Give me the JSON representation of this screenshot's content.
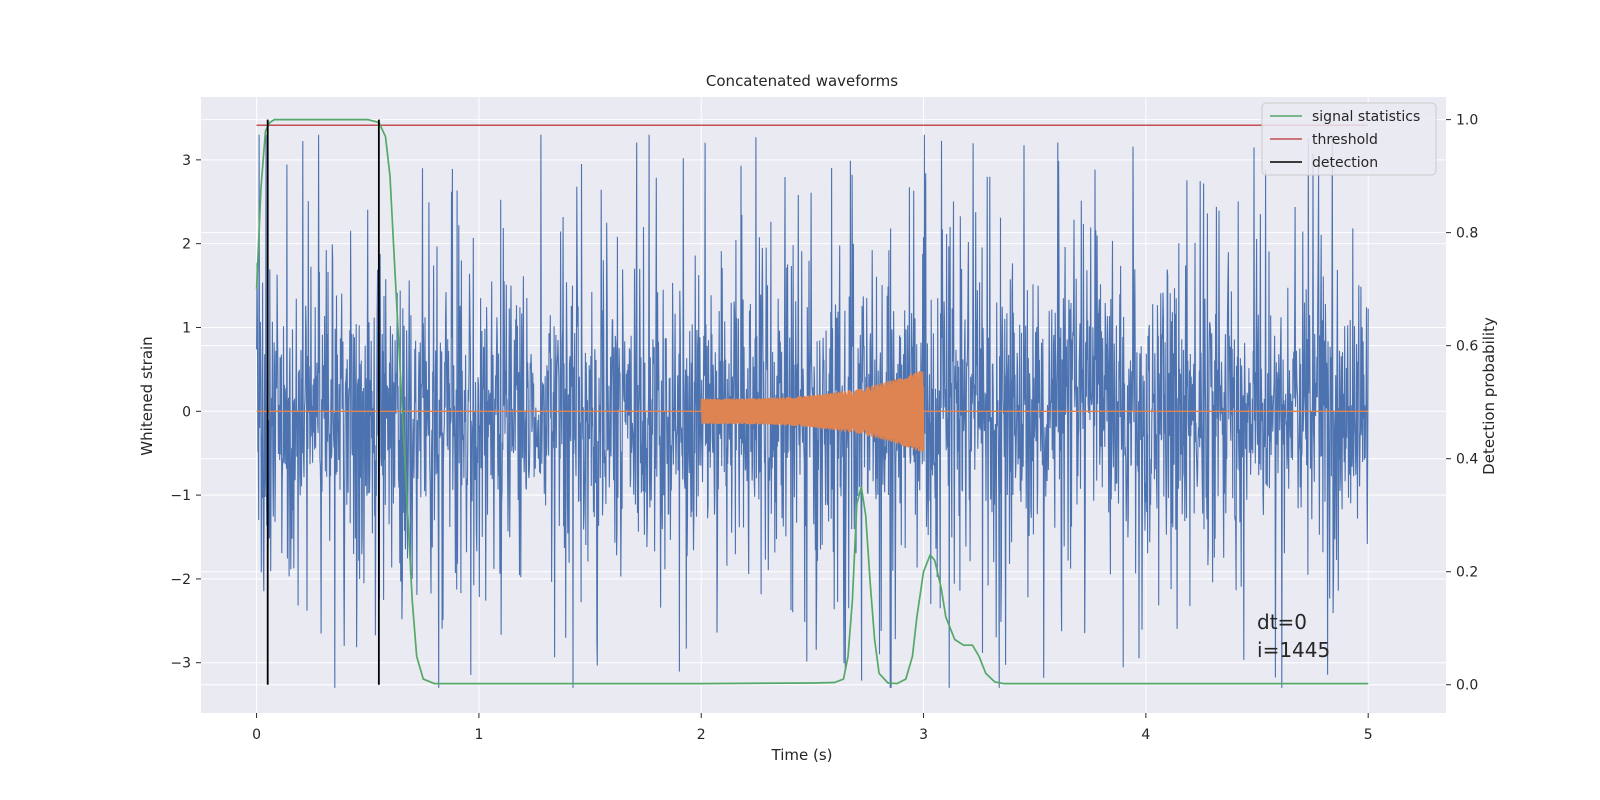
{
  "chart_data": {
    "type": "line",
    "title": "Concatenated waveforms",
    "xlabel": "Time (s)",
    "ylabel": "Whitened strain",
    "y2label": "Detection probability",
    "xlim": [
      -0.25,
      5.35
    ],
    "ylim": [
      -3.6,
      3.75
    ],
    "y2lim": [
      -0.05,
      1.04
    ],
    "xticks": [
      0,
      1,
      2,
      3,
      4,
      5
    ],
    "yticks": [
      -3,
      -2,
      -1,
      0,
      1,
      2,
      3
    ],
    "y2ticks": [
      0.0,
      0.2,
      0.4,
      0.6,
      0.8,
      1.0
    ],
    "xtick_labels": [
      "0",
      "1",
      "2",
      "3",
      "4",
      "5"
    ],
    "ytick_labels": [
      "−3",
      "−2",
      "−1",
      "0",
      "1",
      "2",
      "3"
    ],
    "y2tick_labels": [
      "0.0",
      "0.2",
      "0.4",
      "0.6",
      "0.8",
      "1.0"
    ],
    "grid": true,
    "legend_position": "top-right",
    "colors": {
      "background": "#eaeaf2",
      "noise": "#4c72b0",
      "chirp": "#dd8452",
      "signal_statistics": "#55a868",
      "threshold": "#c44e52",
      "detection": "#000000",
      "grid": "#ffffff"
    },
    "noise": {
      "t_start": 0,
      "t_end": 5,
      "amplitude_approx": 0.8
    },
    "chirp": {
      "t_start": 2.0,
      "t_end": 3.0,
      "amp_start": 0.15,
      "amp_end": 0.5
    },
    "series": [
      {
        "name": "signal statistics",
        "axis": "right",
        "x": [
          0.0,
          0.02,
          0.04,
          0.06,
          0.08,
          0.1,
          0.2,
          0.3,
          0.4,
          0.5,
          0.55,
          0.58,
          0.6,
          0.62,
          0.64,
          0.66,
          0.68,
          0.7,
          0.72,
          0.75,
          0.8,
          1.0,
          2.0,
          2.5,
          2.6,
          2.64,
          2.66,
          2.68,
          2.7,
          2.72,
          2.74,
          2.76,
          2.78,
          2.8,
          2.84,
          2.88,
          2.92,
          2.95,
          2.97,
          3.0,
          3.03,
          3.05,
          3.08,
          3.1,
          3.14,
          3.18,
          3.22,
          3.25,
          3.28,
          3.32,
          3.36,
          3.4,
          3.6,
          4.0,
          5.0
        ],
        "y": [
          0.7,
          0.88,
          0.98,
          0.995,
          1.0,
          1.0,
          1.0,
          1.0,
          1.0,
          1.0,
          0.995,
          0.97,
          0.9,
          0.75,
          0.6,
          0.45,
          0.3,
          0.15,
          0.05,
          0.01,
          0.002,
          0.002,
          0.002,
          0.003,
          0.004,
          0.01,
          0.05,
          0.15,
          0.32,
          0.35,
          0.3,
          0.18,
          0.08,
          0.02,
          0.003,
          0.002,
          0.01,
          0.05,
          0.12,
          0.2,
          0.23,
          0.22,
          0.17,
          0.12,
          0.08,
          0.07,
          0.07,
          0.05,
          0.02,
          0.005,
          0.002,
          0.002,
          0.002,
          0.002,
          0.002
        ]
      },
      {
        "name": "threshold",
        "axis": "right",
        "x": [
          0,
          5
        ],
        "y": [
          0.99,
          0.99
        ]
      },
      {
        "name": "detection",
        "axis": "right",
        "x": [
          0.05,
          0.55
        ],
        "y_range": [
          0.0,
          1.0
        ]
      }
    ],
    "annotations": [
      "dt=0",
      "i=1445"
    ],
    "annotation_anchor": {
      "x": 4.5,
      "y": -2.6
    }
  }
}
